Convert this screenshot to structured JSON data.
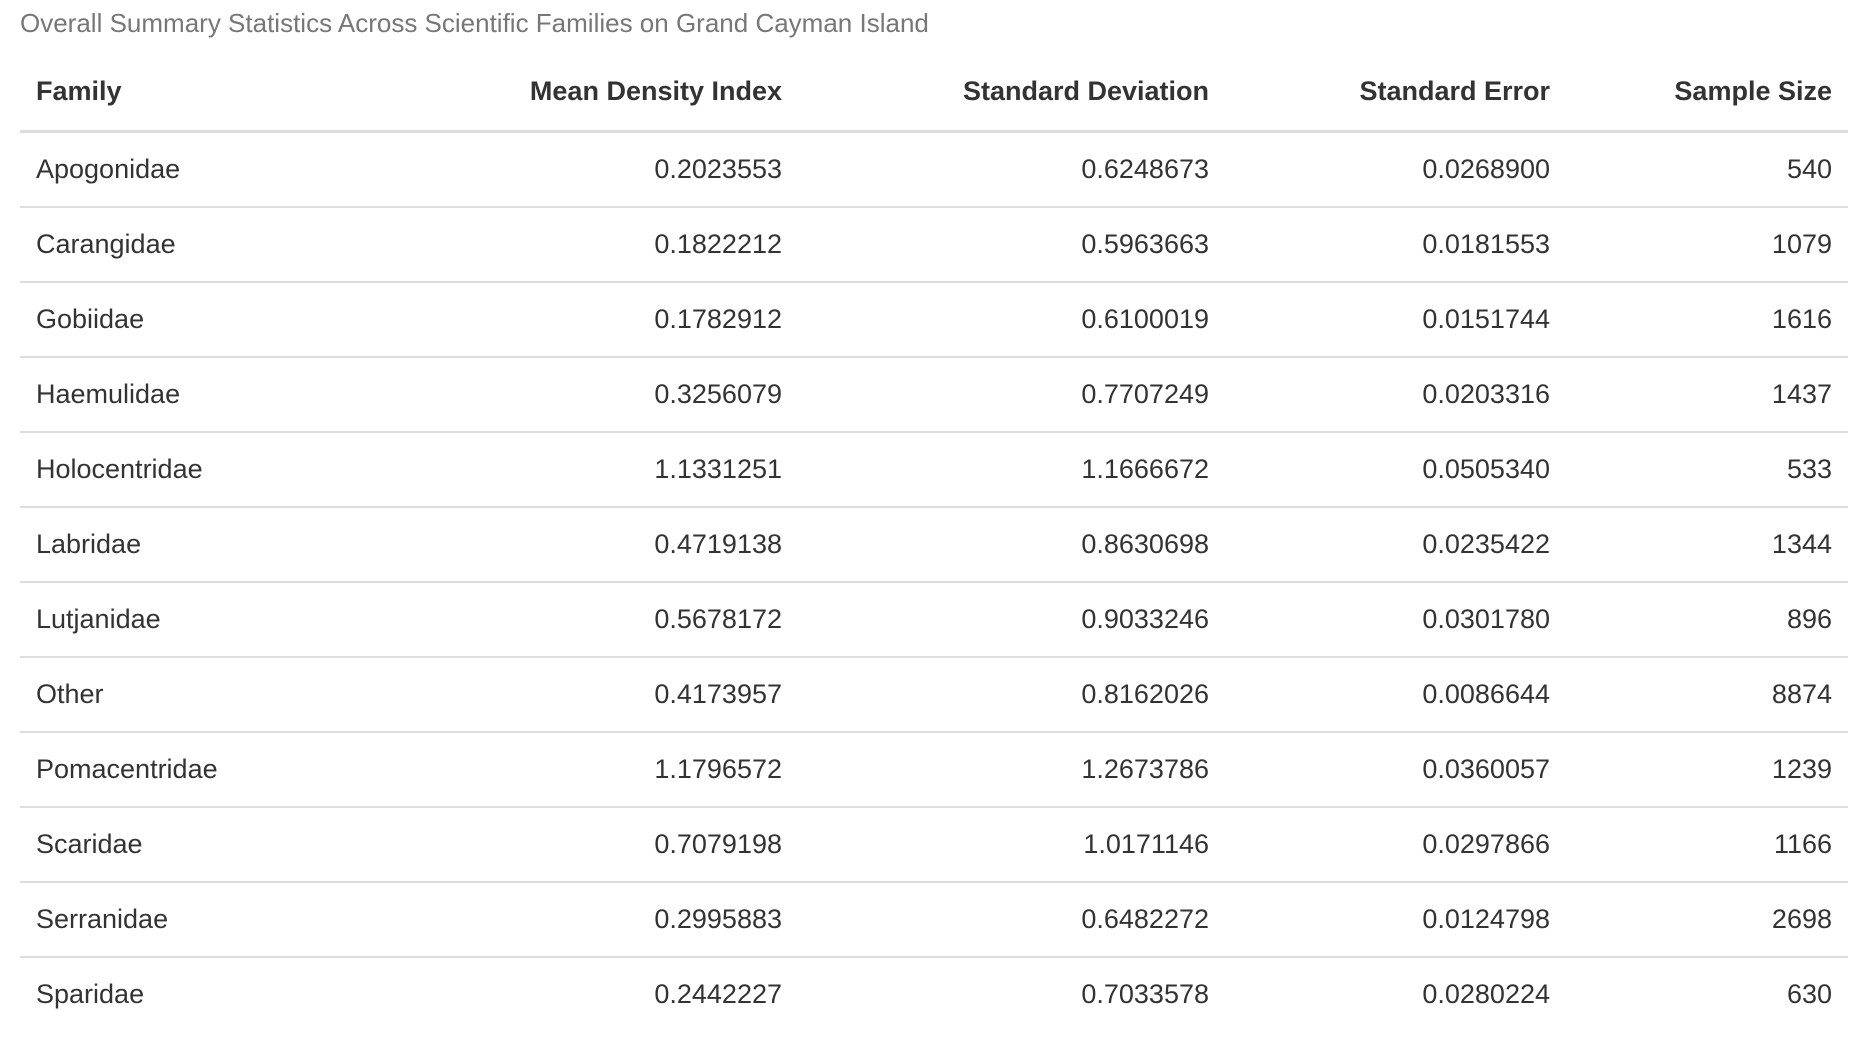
{
  "caption": "Overall Summary Statistics Across Scientific Families on Grand Cayman Island",
  "table": {
    "headers": [
      "Family",
      "Mean Density Index",
      "Standard Deviation",
      "Standard Error",
      "Sample Size"
    ],
    "rows": [
      [
        "Apogonidae",
        "0.2023553",
        "0.6248673",
        "0.0268900",
        "540"
      ],
      [
        "Carangidae",
        "0.1822212",
        "0.5963663",
        "0.0181553",
        "1079"
      ],
      [
        "Gobiidae",
        "0.1782912",
        "0.6100019",
        "0.0151744",
        "1616"
      ],
      [
        "Haemulidae",
        "0.3256079",
        "0.7707249",
        "0.0203316",
        "1437"
      ],
      [
        "Holocentridae",
        "1.1331251",
        "1.1666672",
        "0.0505340",
        "533"
      ],
      [
        "Labridae",
        "0.4719138",
        "0.8630698",
        "0.0235422",
        "1344"
      ],
      [
        "Lutjanidae",
        "0.5678172",
        "0.9033246",
        "0.0301780",
        "896"
      ],
      [
        "Other",
        "0.4173957",
        "0.8162026",
        "0.0086644",
        "8874"
      ],
      [
        "Pomacentridae",
        "1.1796572",
        "1.2673786",
        "0.0360057",
        "1239"
      ],
      [
        "Scaridae",
        "0.7079198",
        "1.0171146",
        "0.0297866",
        "1166"
      ],
      [
        "Serranidae",
        "0.2995883",
        "0.6482272",
        "0.0124798",
        "2698"
      ],
      [
        "Sparidae",
        "0.2442227",
        "0.7033578",
        "0.0280224",
        "630"
      ]
    ]
  }
}
